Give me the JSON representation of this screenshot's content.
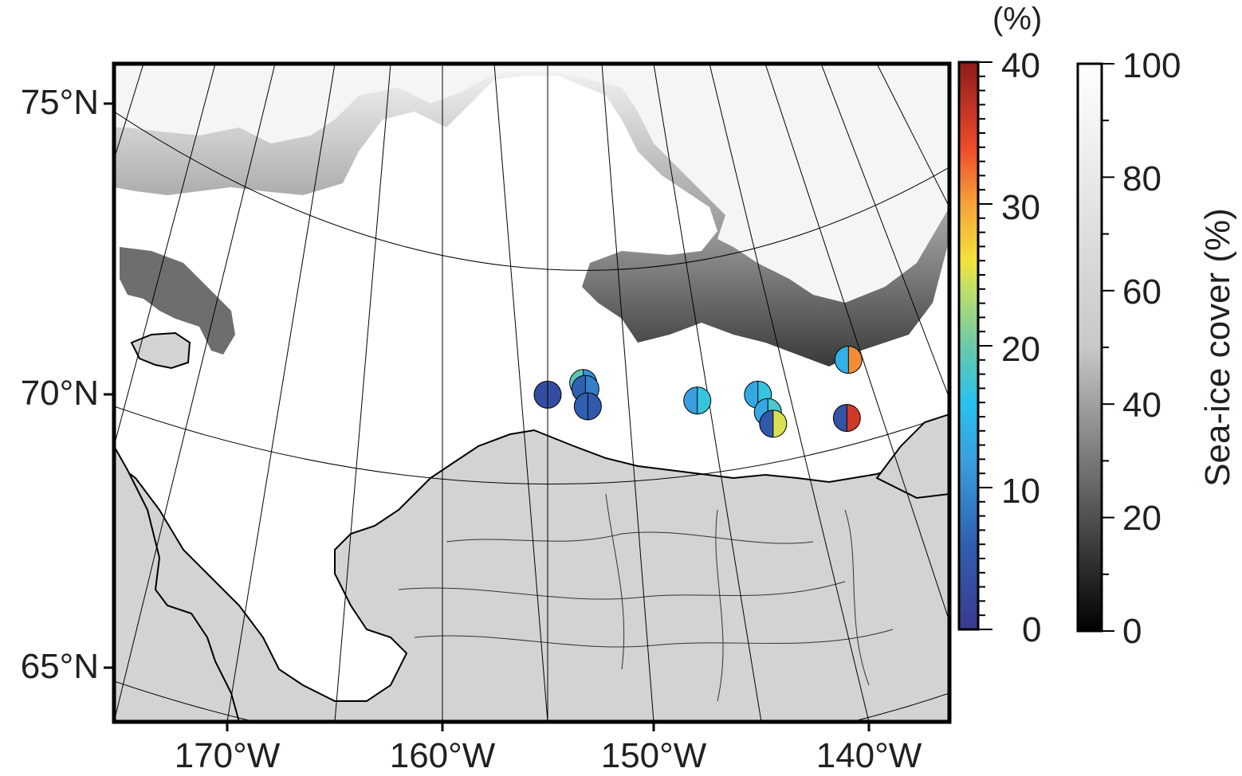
{
  "map": {
    "region": "Beaufort and Chukchi Seas, northern Alaska",
    "latitude_labels": [
      "75°N",
      "70°N",
      "65°N"
    ],
    "longitude_labels": [
      "170°W",
      "160°W",
      "150°W",
      "140°W"
    ],
    "colors": {
      "land": "#d3d3d3",
      "ocean": "#ffffff",
      "ice_full": "#f5f5f5",
      "frame": "#000000"
    }
  },
  "value_colorbar": {
    "unit_label": "(%)",
    "ticks": [
      "40",
      "30",
      "20",
      "10",
      "0"
    ],
    "range": [
      0,
      40
    ],
    "colormap": "blue-cyan-green-yellow-red"
  },
  "ice_colorbar": {
    "title": "Sea-ice cover (%)",
    "ticks": [
      "100",
      "80",
      "60",
      "40",
      "20",
      "0"
    ],
    "range": [
      0,
      100
    ],
    "colormap": "black-to-white"
  },
  "stations": [
    {
      "lon": -153.3,
      "lat": 70.9,
      "left_value": 19,
      "right_value": 11
    },
    {
      "lon": -155.0,
      "lat": 70.7,
      "left_value": 3,
      "right_value": 3
    },
    {
      "lon": -153.2,
      "lat": 70.8,
      "left_value": 6,
      "right_value": 9
    },
    {
      "lon": -153.1,
      "lat": 70.5,
      "left_value": 6,
      "right_value": 5
    },
    {
      "lon": -147.9,
      "lat": 70.6,
      "left_value": 12,
      "right_value": 17
    },
    {
      "lon": -145.0,
      "lat": 70.7,
      "left_value": 13,
      "right_value": 17
    },
    {
      "lon": -144.6,
      "lat": 70.4,
      "left_value": 13,
      "right_value": 18
    },
    {
      "lon": -144.4,
      "lat": 70.2,
      "left_value": 5,
      "right_value": 25
    },
    {
      "lon": -140.5,
      "lat": 71.3,
      "left_value": 14,
      "right_value": 31
    },
    {
      "lon": -140.9,
      "lat": 70.3,
      "left_value": 4,
      "right_value": 36
    }
  ]
}
